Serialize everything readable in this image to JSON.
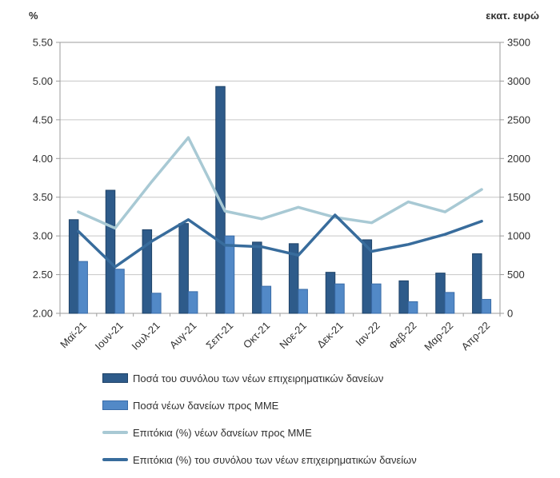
{
  "chart_data": {
    "type": "combo",
    "title": "",
    "categories": [
      "Μαϊ-21",
      "Ιουν-21",
      "Ιουλ-21",
      "Αυγ-21",
      "Σεπ-21",
      "Οκτ-21",
      "Νοε-21",
      "Δεκ-21",
      "Ιαν-22",
      "Φεβ-22",
      "Μαρ-22",
      "Απρ-22"
    ],
    "series": [
      {
        "name": "Ποσά του συνόλου των νέων επιχειρηματικών δανείων",
        "kind": "bar",
        "axis": "right",
        "color": "#2E5B8A",
        "border": "#1F4368",
        "values": [
          1210,
          1590,
          1080,
          1160,
          2930,
          920,
          900,
          530,
          950,
          420,
          520,
          770
        ]
      },
      {
        "name": "Ποσά νέων δανείων προς ΜΜΕ",
        "kind": "bar",
        "axis": "right",
        "color": "#5289C7",
        "border": "#3A6CA8",
        "values": [
          670,
          570,
          260,
          280,
          1000,
          350,
          310,
          380,
          380,
          150,
          270,
          180
        ]
      },
      {
        "name": "Επιτόκια (%) νέων δανείων προς ΜΜΕ",
        "kind": "line",
        "axis": "left",
        "color": "#A8C9D4",
        "border": "#A8C9D4",
        "values": [
          3.31,
          3.1,
          3.7,
          4.27,
          3.32,
          3.22,
          3.37,
          3.24,
          3.17,
          3.44,
          3.31,
          3.6
        ]
      },
      {
        "name": "Επιτόκια (%) του συνόλου των νέων επιχειρηματικών δανείων",
        "kind": "line",
        "axis": "left",
        "color": "#386C9C",
        "border": "#386C9C",
        "values": [
          3.06,
          2.6,
          2.93,
          3.21,
          2.88,
          2.86,
          2.75,
          3.27,
          2.8,
          2.89,
          3.02,
          3.19
        ]
      }
    ],
    "left_axis": {
      "title": "%",
      "min": 2.0,
      "max": 5.5,
      "step": 0.5,
      "tick_labels": [
        "5.50",
        "5.00",
        "4.50",
        "4.00",
        "3.50",
        "3.00",
        "2.50",
        "2.00"
      ]
    },
    "right_axis": {
      "title": "εκατ. ευρώ",
      "min": 0,
      "max": 3500,
      "step": 500,
      "tick_labels": [
        "3500",
        "3000",
        "2500",
        "2000",
        "1500",
        "1000",
        "500",
        "0"
      ]
    },
    "grid": true,
    "legend_position": "bottom-left",
    "colors": {
      "grid": "#C6C6C6",
      "axis_border": "#9B9B9B",
      "text": "#303030",
      "background": "#FFFFFF"
    }
  }
}
